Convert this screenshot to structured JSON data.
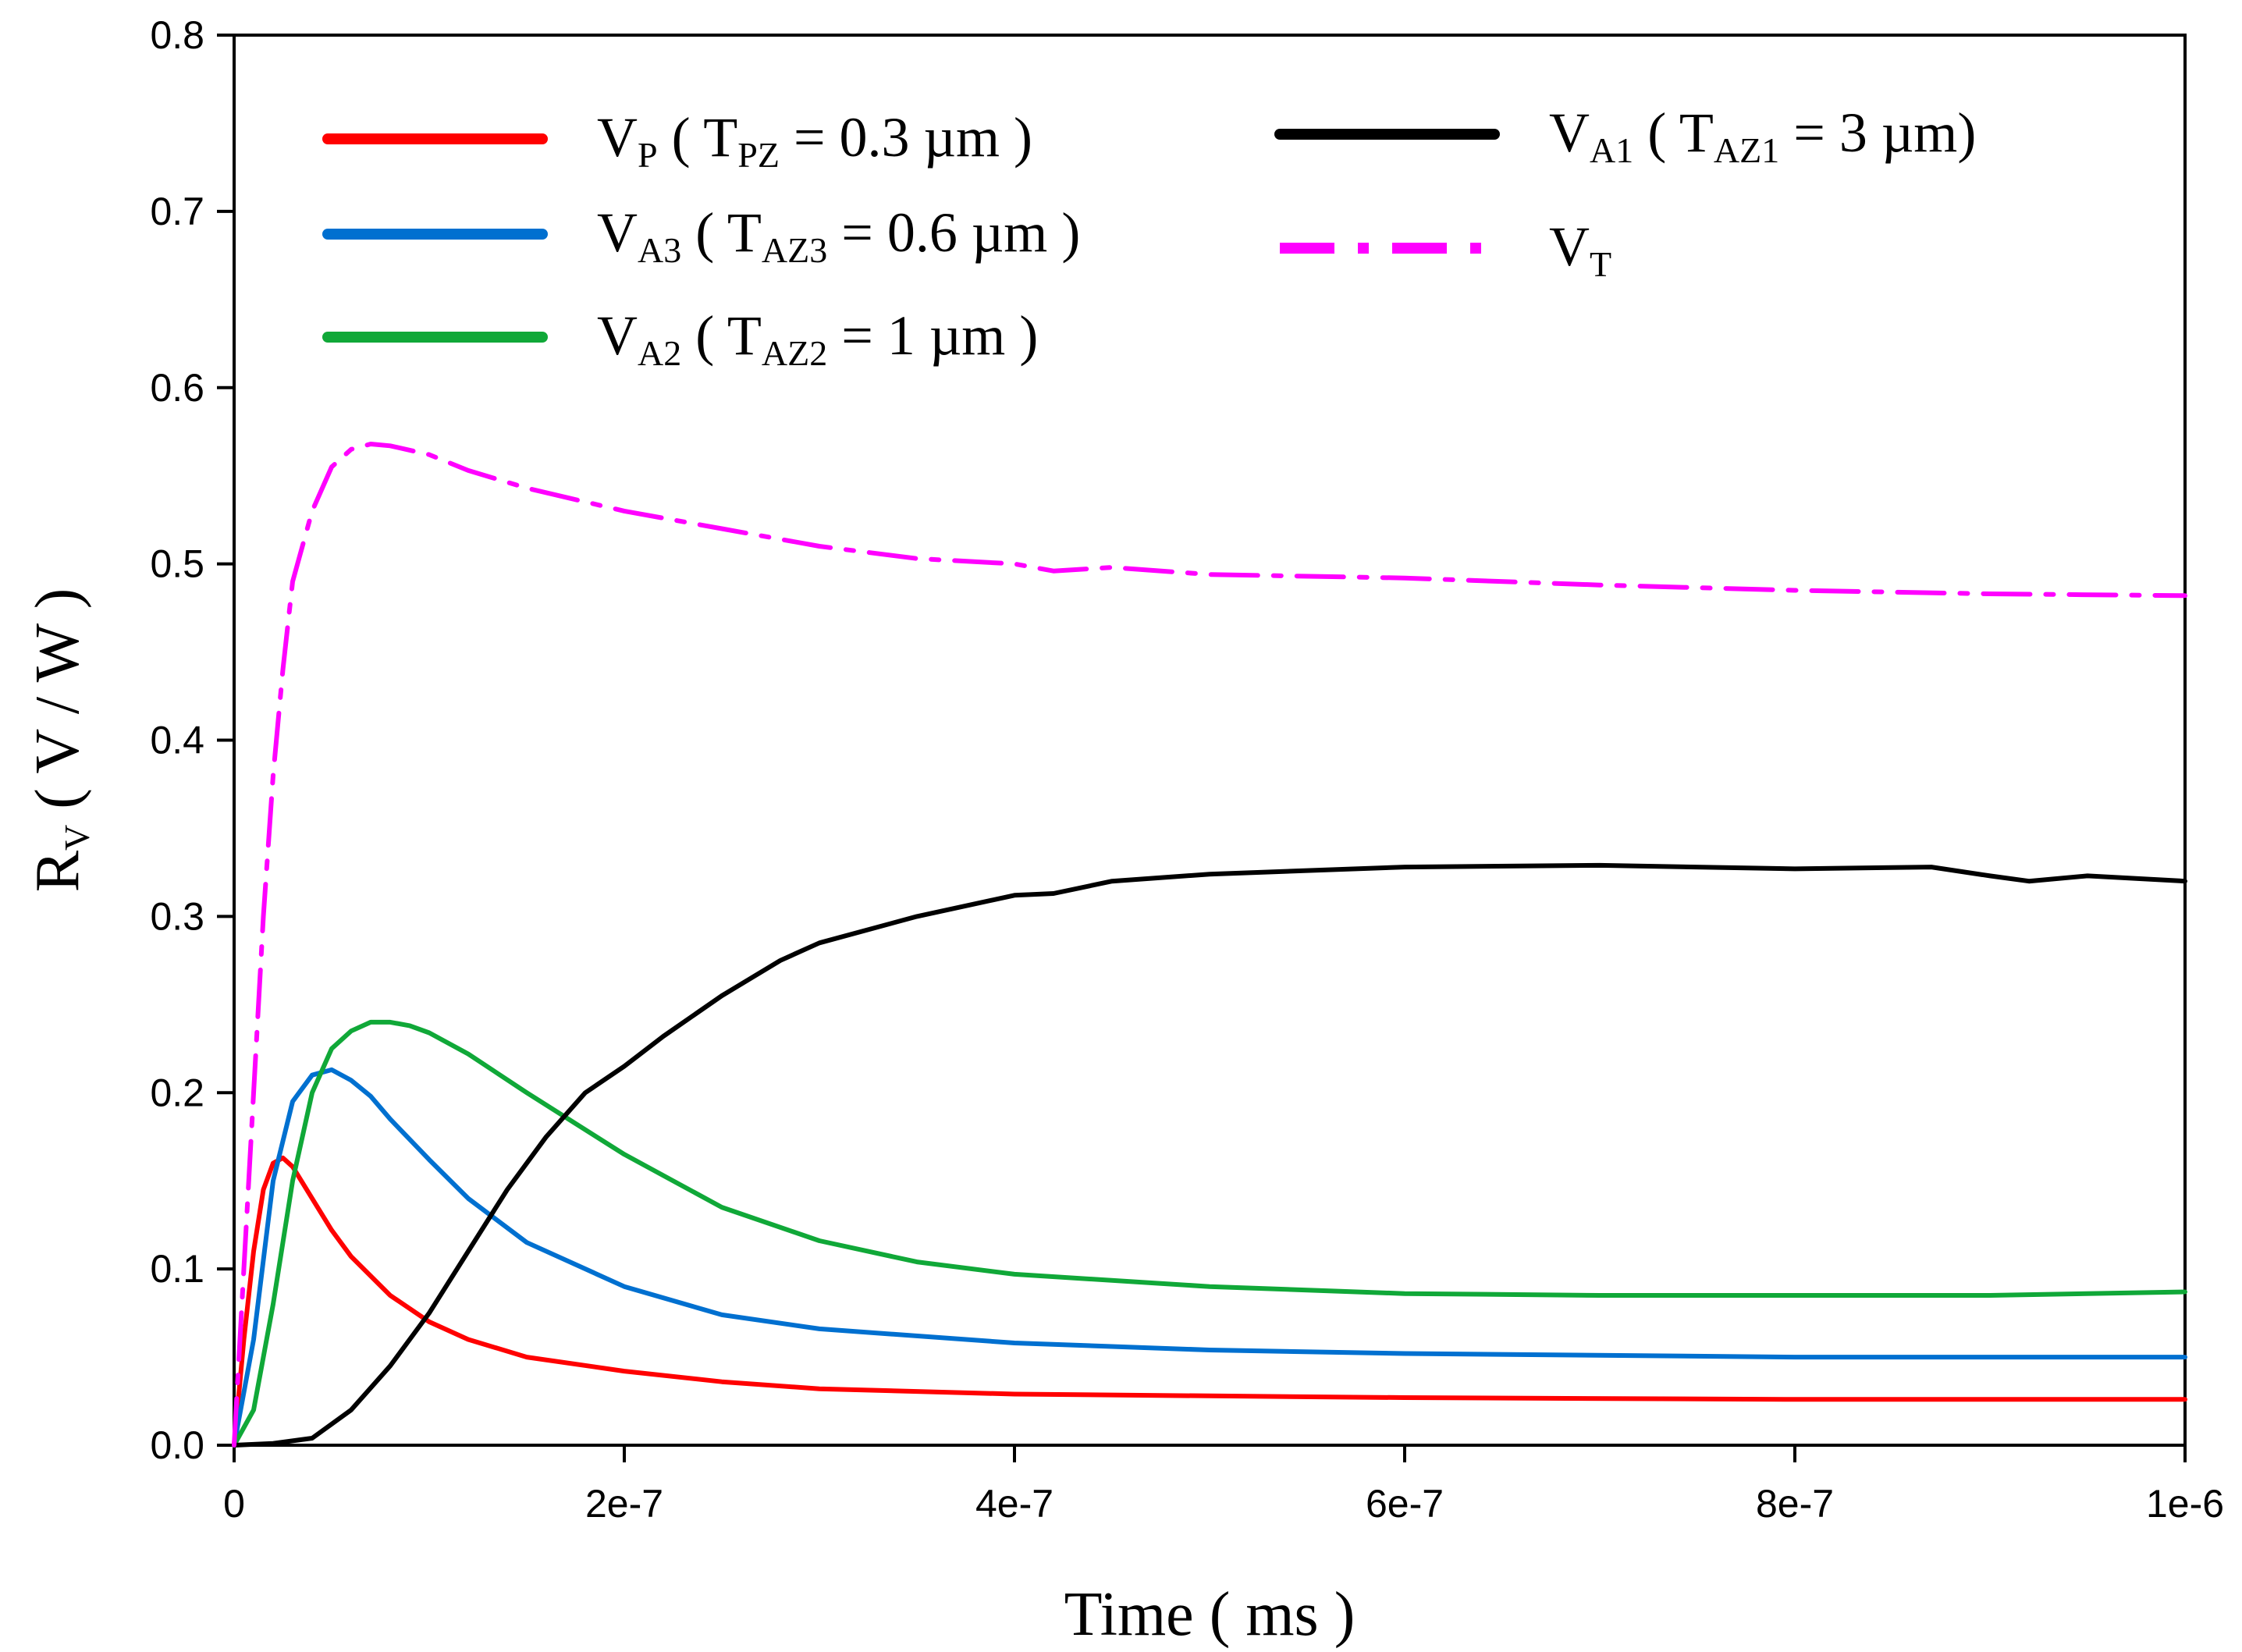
{
  "chart_data": {
    "type": "line",
    "title": "",
    "xlabel": "Time ( ms )",
    "ylabel": {
      "main": "R",
      "sub": "V",
      "rest": " ( V / W )"
    },
    "xlim": [
      0,
      1e-06
    ],
    "ylim": [
      0,
      0.8
    ],
    "x_ticks": [
      {
        "value": 0,
        "label": "0"
      },
      {
        "value": 2e-07,
        "label": "2e-7"
      },
      {
        "value": 4e-07,
        "label": "4e-7"
      },
      {
        "value": 6e-07,
        "label": "6e-7"
      },
      {
        "value": 8e-07,
        "label": "8e-7"
      },
      {
        "value": 1e-06,
        "label": "1e-6"
      }
    ],
    "y_ticks": [
      {
        "value": 0.0,
        "label": "0.0"
      },
      {
        "value": 0.1,
        "label": "0.1"
      },
      {
        "value": 0.2,
        "label": "0.2"
      },
      {
        "value": 0.3,
        "label": "0.3"
      },
      {
        "value": 0.4,
        "label": "0.4"
      },
      {
        "value": 0.5,
        "label": "0.5"
      },
      {
        "value": 0.6,
        "label": "0.6"
      },
      {
        "value": 0.7,
        "label": "0.7"
      },
      {
        "value": 0.8,
        "label": "0.8"
      }
    ],
    "grid": false,
    "legend_position": "top",
    "series": [
      {
        "name": "VP ( TPZ = 0.3 µm )",
        "legend": [
          {
            "t": "V"
          },
          {
            "t": "P",
            "sub": true
          },
          {
            "t": "  ( T"
          },
          {
            "t": "PZ",
            "sub": true
          },
          {
            "t": "  = 0.3 µm )"
          }
        ],
        "color": "#ff0000",
        "dash": "solid",
        "x": [
          0,
          5e-09,
          1e-08,
          1.5e-08,
          2e-08,
          2.5e-08,
          3e-08,
          4e-08,
          5e-08,
          6e-08,
          8e-08,
          1e-07,
          1.2e-07,
          1.5e-07,
          2e-07,
          2.5e-07,
          3e-07,
          4e-07,
          5e-07,
          6e-07,
          8e-07,
          1e-06
        ],
        "y": [
          0,
          0.06,
          0.11,
          0.145,
          0.16,
          0.163,
          0.158,
          0.14,
          0.122,
          0.107,
          0.085,
          0.07,
          0.06,
          0.05,
          0.042,
          0.036,
          0.032,
          0.029,
          0.028,
          0.027,
          0.026,
          0.026
        ]
      },
      {
        "name": "VA3 ( TAZ3 = 0.6 µm )",
        "legend": [
          {
            "t": "V"
          },
          {
            "t": "A3",
            "sub": true
          },
          {
            "t": "  ( T"
          },
          {
            "t": "AZ3",
            "sub": true
          },
          {
            "t": " = 0.6 µm )"
          }
        ],
        "color": "#0070d0",
        "dash": "solid",
        "x": [
          0,
          1e-08,
          2e-08,
          3e-08,
          4e-08,
          5e-08,
          6e-08,
          7e-08,
          8e-08,
          1e-07,
          1.2e-07,
          1.5e-07,
          2e-07,
          2.5e-07,
          3e-07,
          4e-07,
          5e-07,
          6e-07,
          8e-07,
          1e-06
        ],
        "y": [
          0,
          0.06,
          0.15,
          0.195,
          0.21,
          0.213,
          0.207,
          0.198,
          0.185,
          0.162,
          0.14,
          0.115,
          0.09,
          0.074,
          0.066,
          0.058,
          0.054,
          0.052,
          0.05,
          0.05
        ]
      },
      {
        "name": "VA2 ( TAZ2 = 1 µm )",
        "legend": [
          {
            "t": "V"
          },
          {
            "t": "A2",
            "sub": true
          },
          {
            "t": " ( T"
          },
          {
            "t": "AZ2",
            "sub": true
          },
          {
            "t": " = 1 µm )"
          }
        ],
        "color": "#10a838",
        "dash": "solid",
        "x": [
          0,
          1e-08,
          2e-08,
          3e-08,
          4e-08,
          5e-08,
          6e-08,
          7e-08,
          8e-08,
          9e-08,
          1e-07,
          1.2e-07,
          1.5e-07,
          2e-07,
          2.5e-07,
          3e-07,
          3.5e-07,
          4e-07,
          5e-07,
          6e-07,
          7e-07,
          8e-07,
          9e-07,
          1e-06
        ],
        "y": [
          0,
          0.02,
          0.08,
          0.15,
          0.2,
          0.225,
          0.235,
          0.24,
          0.24,
          0.238,
          0.234,
          0.222,
          0.2,
          0.165,
          0.135,
          0.116,
          0.104,
          0.097,
          0.09,
          0.086,
          0.085,
          0.085,
          0.085,
          0.087
        ]
      },
      {
        "name": "VA1 ( TAZ1 = 3 µm)",
        "legend": [
          {
            "t": "V"
          },
          {
            "t": "A1",
            "sub": true
          },
          {
            "t": " ( T"
          },
          {
            "t": "AZ1",
            "sub": true
          },
          {
            "t": " = 3 µm)"
          }
        ],
        "color": "#000000",
        "dash": "solid",
        "x": [
          0,
          2e-08,
          4e-08,
          6e-08,
          8e-08,
          1e-07,
          1.2e-07,
          1.4e-07,
          1.6e-07,
          1.8e-07,
          2e-07,
          2.2e-07,
          2.5e-07,
          2.8e-07,
          3e-07,
          3.5e-07,
          4e-07,
          4.2e-07,
          4.5e-07,
          5e-07,
          6e-07,
          7e-07,
          8e-07,
          8.7e-07,
          9e-07,
          9.2e-07,
          9.5e-07,
          1e-06
        ],
        "y": [
          0,
          0.001,
          0.004,
          0.02,
          0.045,
          0.075,
          0.11,
          0.145,
          0.175,
          0.2,
          0.215,
          0.232,
          0.255,
          0.275,
          0.285,
          0.3,
          0.312,
          0.313,
          0.32,
          0.324,
          0.328,
          0.329,
          0.327,
          0.328,
          0.323,
          0.32,
          0.323,
          0.32
        ]
      },
      {
        "name": "VT",
        "legend": [
          {
            "t": "V"
          },
          {
            "t": "T",
            "sub": true
          }
        ],
        "color": "#ff00ff",
        "dash": "dashdot",
        "x": [
          0,
          5e-09,
          1e-08,
          1.5e-08,
          2e-08,
          2.5e-08,
          3e-08,
          4e-08,
          5e-08,
          6e-08,
          7e-08,
          8e-08,
          1e-07,
          1.2e-07,
          1.5e-07,
          2e-07,
          2.5e-07,
          3e-07,
          3.5e-07,
          4e-07,
          4.2e-07,
          4.5e-07,
          5e-07,
          6e-07,
          7e-07,
          8e-07,
          9e-07,
          1e-06
        ],
        "y": [
          0,
          0.1,
          0.2,
          0.3,
          0.38,
          0.44,
          0.49,
          0.53,
          0.555,
          0.565,
          0.568,
          0.567,
          0.562,
          0.553,
          0.543,
          0.53,
          0.52,
          0.51,
          0.503,
          0.5,
          0.496,
          0.498,
          0.494,
          0.492,
          0.488,
          0.485,
          0.483,
          0.482
        ]
      }
    ]
  }
}
